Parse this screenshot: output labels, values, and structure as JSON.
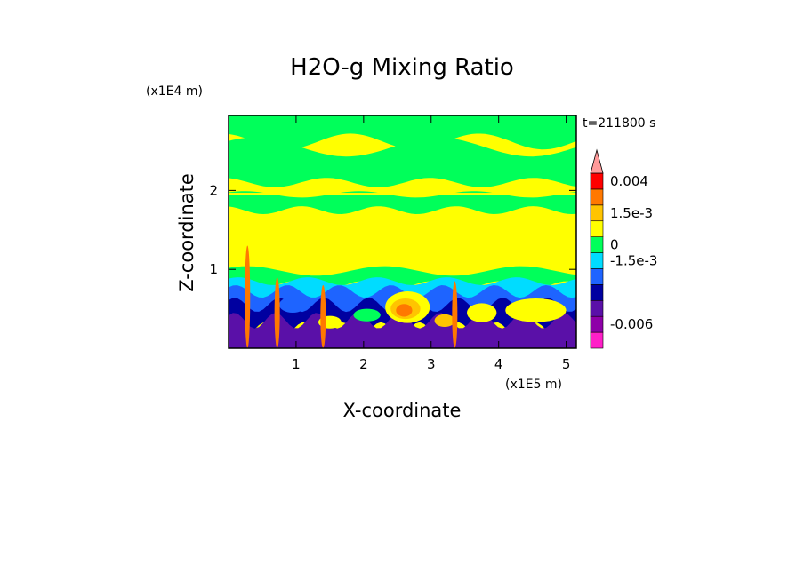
{
  "chart_data": {
    "type": "heatmap",
    "title": "H2O-g Mixing Ratio",
    "xlabel": "X-coordinate",
    "ylabel": "Z-coordinate",
    "x_unit": "(x1E5 m)",
    "y_unit": "(x1E4 m)",
    "time_label": "t=211800 s",
    "xlim": [
      0,
      5.15
    ],
    "ylim": [
      0,
      2.95
    ],
    "x_ticks": [
      "1",
      "2",
      "3",
      "4",
      "5"
    ],
    "x_tick_values": [
      1,
      2,
      3,
      4,
      5
    ],
    "y_ticks": [
      "1",
      "2"
    ],
    "y_tick_values": [
      1,
      2
    ],
    "colorbar": {
      "colors": [
        "#ff1fc8",
        "#8e00a8",
        "#5a10a8",
        "#0000a0",
        "#1e64ff",
        "#00dcff",
        "#00ff5a",
        "#ffff00",
        "#ffc400",
        "#ff7800",
        "#ff0000",
        "#ff9a9a"
      ],
      "tick_labels": [
        "-0.006",
        "-1.5e-3",
        "0",
        "1.5e-3",
        "0.004"
      ],
      "tick_values": [
        -0.006,
        -0.0015,
        0,
        0.0015,
        0.004
      ]
    },
    "bands": [
      {
        "z": [
          2.55,
          2.95
        ],
        "level": "0 to 1.5e-3"
      },
      {
        "z": [
          2.1,
          2.55
        ],
        "level": "0"
      },
      {
        "z": [
          1.95,
          2.1
        ],
        "level": "0 to 1.5e-3"
      },
      {
        "z": [
          1.75,
          1.95
        ],
        "level": "0"
      },
      {
        "z": [
          0.95,
          1.75
        ],
        "level": "0 to 1.5e-3"
      },
      {
        "z": [
          0.8,
          0.95
        ],
        "level": "0"
      },
      {
        "z": [
          0.55,
          0.8
        ],
        "level": "-1.5e-3"
      },
      {
        "z": [
          0.3,
          0.55
        ],
        "level": "mixed -1.5e-3 to 1.5e-3"
      },
      {
        "z": [
          0.0,
          0.3
        ],
        "level": "-0.006"
      }
    ]
  }
}
